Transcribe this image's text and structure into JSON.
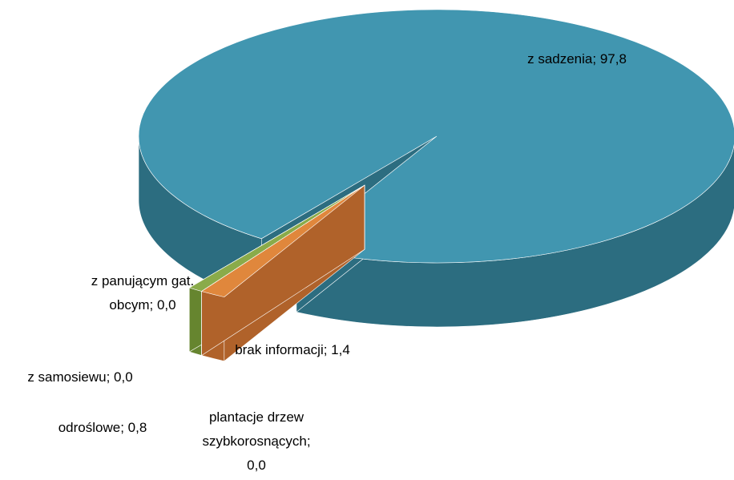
{
  "chart_data": {
    "type": "pie3d",
    "values": [
      97.8,
      1.4,
      0.0,
      0.8,
      0.0,
      0.0
    ],
    "value_labels": [
      [
        "z sadzenia; 97,8"
      ],
      [
        "brak informacji; 1,4"
      ],
      [
        "plantacje drzew",
        "szybkorosnących;",
        "0,0"
      ],
      [
        "odroślowe; 0,8"
      ],
      [
        "z samosiewu; 0,0"
      ],
      [
        "z panującym gat.",
        "obcym; 0,0"
      ]
    ],
    "colors": [
      "#4196b0",
      "#e0873c",
      "#8064a2",
      "#8aab4a",
      "#c0504d",
      "#9bbb59"
    ],
    "side_colors": [
      "#2c6d80",
      "#b0622a",
      "#5e4a7a",
      "#66852f",
      "#8e3a38",
      "#76913e"
    ]
  }
}
